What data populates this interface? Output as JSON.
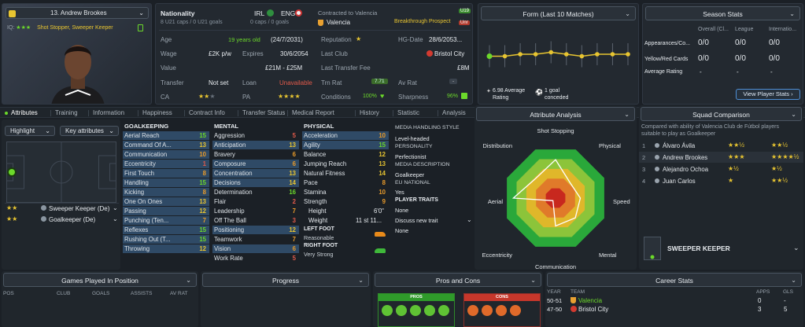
{
  "player": {
    "number_name": "13. Andrew Brookes",
    "roles_text": "Shot Stopper, Sweeper Keeper",
    "role_prefix": "IQ:",
    "nationality_label": "Nationality",
    "nat1": "IRL",
    "nat2": "ENG",
    "caps1": "8 U21 caps / 0 U21 goals",
    "caps2": "0 caps / 0 goals",
    "contract_label": "Contracted to Valencia",
    "club": "Valencia",
    "prospect": "Breakthrough Prospect",
    "badge_u19": "U19",
    "badge_unr": "Unr",
    "age_label": "Age",
    "age_value": "19 years old",
    "dob": "(24/7/2031)",
    "reputation_label": "Reputation",
    "hg_label": "HG-Date",
    "hg_value": "28/6/2053...",
    "wage_label": "Wage",
    "wage_value": "£2K p/w",
    "expires_label": "Expires",
    "expires_value": "30/6/2054",
    "lastclub_label": "Last Club",
    "lastclub_value": "Bristol City",
    "value_label": "Value",
    "value_value": "£21M - £25M",
    "fee_label": "Last Transfer Fee",
    "fee_value": "£8M",
    "transfer_label": "Transfer",
    "transfer_value": "Not set",
    "loan_label": "Loan",
    "loan_value": "Unavailable",
    "trnrat_label": "Trn Rat",
    "trnrat_value": "7.71",
    "avrat_label": "Av Rat",
    "avrat_value": "-",
    "ca_label": "CA",
    "pa_label": "PA",
    "conditions_label": "Conditions",
    "conditions_value": "100%",
    "sharpness_label": "Sharpness",
    "sharpness_value": "96%"
  },
  "form": {
    "title": "Form (Last 10 Matches)",
    "avg_value": "6.98 Average",
    "avg_label": "Rating",
    "conceded_value": "1 goal",
    "conceded_label": "conceded",
    "points": [
      6.9,
      6.9,
      7.0,
      7.0,
      7.1,
      7.0,
      6.9,
      7.0,
      7.0,
      7.0
    ]
  },
  "season": {
    "title": "Season Stats",
    "cols": [
      "Overall (Cl...",
      "League",
      "Internatio..."
    ],
    "rows": [
      {
        "label": "Appearances/Co...",
        "vals": [
          "0/0",
          "0/0",
          "0/0"
        ]
      },
      {
        "label": "Yellow/Red Cards",
        "vals": [
          "0/0",
          "0/0",
          "0/0"
        ]
      },
      {
        "label": "Average Rating",
        "vals": [
          "-",
          "-",
          "-"
        ]
      }
    ],
    "button": "View Player Stats"
  },
  "tabs": [
    "Attributes",
    "Training",
    "Information",
    "Happiness",
    "Contract Info",
    "Transfer Status",
    "Medical Report",
    "History",
    "Statistic",
    "Analysis"
  ],
  "left": {
    "highlight": "Highlight",
    "key_attr": "Key attributes",
    "role1": "Sweeper Keeper (De)",
    "role2": "Goalkeeper (De)"
  },
  "goalkeeping": {
    "title": "GOALKEEPING",
    "items": [
      {
        "n": "Aerial Reach",
        "v": "15"
      },
      {
        "n": "Command Of A...",
        "v": "13"
      },
      {
        "n": "Communication",
        "v": "10"
      },
      {
        "n": "Eccentricity",
        "v": "1"
      },
      {
        "n": "First Touch",
        "v": "8"
      },
      {
        "n": "Handling",
        "v": "15"
      },
      {
        "n": "Kicking",
        "v": "8"
      },
      {
        "n": "One On Ones",
        "v": "13"
      },
      {
        "n": "Passing",
        "v": "12"
      },
      {
        "n": "Punching (Ten...",
        "v": "7"
      },
      {
        "n": "Reflexes",
        "v": "15"
      },
      {
        "n": "Rushing Out (T...",
        "v": "15"
      },
      {
        "n": "Throwing",
        "v": "12"
      }
    ]
  },
  "mental": {
    "title": "MENTAL",
    "items": [
      {
        "n": "Aggression",
        "v": "5"
      },
      {
        "n": "Anticipation",
        "v": "13"
      },
      {
        "n": "Bravery",
        "v": "6"
      },
      {
        "n": "Composure",
        "v": "6"
      },
      {
        "n": "Concentration",
        "v": "13"
      },
      {
        "n": "Decisions",
        "v": "14"
      },
      {
        "n": "Determination",
        "v": "16"
      },
      {
        "n": "Flair",
        "v": "2"
      },
      {
        "n": "Leadership",
        "v": "7"
      },
      {
        "n": "Off The Ball",
        "v": "3"
      },
      {
        "n": "Positioning",
        "v": "12"
      },
      {
        "n": "Teamwork",
        "v": "7"
      },
      {
        "n": "Vision",
        "v": "6"
      },
      {
        "n": "Work Rate",
        "v": "5"
      }
    ]
  },
  "physical": {
    "title": "PHYSICAL",
    "items": [
      {
        "n": "Acceleration",
        "v": "10"
      },
      {
        "n": "Agility",
        "v": "15"
      },
      {
        "n": "Balance",
        "v": "12"
      },
      {
        "n": "Jumping Reach",
        "v": "13"
      },
      {
        "n": "Natural Fitness",
        "v": "14"
      },
      {
        "n": "Pace",
        "v": "8"
      },
      {
        "n": "Stamina",
        "v": "10"
      },
      {
        "n": "Strength",
        "v": "9"
      }
    ],
    "height_label": "Height",
    "height_value": "6'0\"",
    "weight_label": "Weight",
    "weight_value": "11 st 11...",
    "leftfoot_label": "LEFT FOOT",
    "leftfoot_value": "Reasonable",
    "rightfoot_label": "RIGHT FOOT",
    "rightfoot_value": "Very Strong"
  },
  "media": {
    "style_title": "MEDIA HANDLING STYLE",
    "style_value": "Level-headed",
    "personality_title": "PERSONALITY",
    "personality_value": "Perfectionist",
    "desc_title": "MEDIA DESCRIPTION",
    "desc_value": "Goalkeeper",
    "eu_title": "EU NATIONAL",
    "eu_value": "Yes",
    "traits_title": "PLAYER TRAITS",
    "traits_value": "None",
    "discuss": "Discuss new trait",
    "discuss_value": "None"
  },
  "analysis": {
    "title": "Attribute Analysis",
    "labels": [
      "Shot Stopping",
      "Physical",
      "Speed",
      "Mental",
      "Communication",
      "Eccentricity",
      "Aerial",
      "Distribution"
    ],
    "values": [
      0.73,
      0.4,
      0.47,
      0.53,
      0.53,
      0.07,
      0.8,
      0.53
    ]
  },
  "squad": {
    "title": "Squad Comparison",
    "desc": "Compared with ability of Valencia Club de Fútbol players suitable to play as Goalkeeper",
    "rows": [
      {
        "rank": "1",
        "name": "Álvaro Ávila"
      },
      {
        "rank": "2",
        "name": "Andrew Brookes"
      },
      {
        "rank": "3",
        "name": "Alejandro Ochoa"
      },
      {
        "rank": "4",
        "name": "Juan Carlos"
      }
    ],
    "role": "SWEEPER KEEPER"
  },
  "bottom": {
    "games_title": "Games Played In Position",
    "games_cols": [
      "POS",
      "CLUB",
      "GOALS",
      "ASSISTS",
      "AV RAT"
    ],
    "progress_title": "Progress",
    "pros_title": "Pros and Cons",
    "pros_label": "PROS",
    "cons_label": "CONS",
    "career_title": "Career Stats",
    "career_cols": [
      "YEAR",
      "TEAM",
      "APPS",
      "GLS"
    ],
    "career_rows": [
      {
        "year": "50-51",
        "team": "Valencia",
        "apps": "0",
        "gls": "-"
      },
      {
        "year": "47-50",
        "team": "Bristol City",
        "apps": "3",
        "gls": "5"
      }
    ]
  },
  "colors": {
    "accent": "#6cd92b",
    "highlight_row": "#2f4a66",
    "value_green": "#6cd92b",
    "value_yellow": "#e8c531",
    "value_red": "#e25a4a"
  }
}
